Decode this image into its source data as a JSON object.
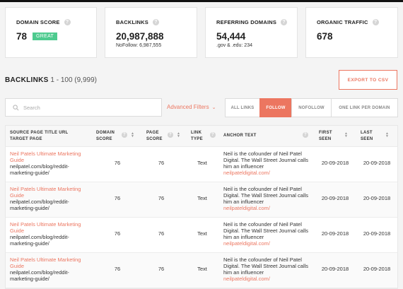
{
  "stats": [
    {
      "label": "DOMAIN SCORE",
      "value": "78",
      "badge": "GREAT",
      "sub": ""
    },
    {
      "label": "BACKLINKS",
      "value": "20,987,888",
      "badge": "",
      "sub": "NoFollow: 6,987,555"
    },
    {
      "label": "REFERRING DOMAINS",
      "value": "54,444",
      "badge": "",
      "sub": ".gov & .edu: 234"
    },
    {
      "label": "ORGANIC TRAFFIC",
      "value": "678",
      "badge": "",
      "sub": ""
    }
  ],
  "section": {
    "title": "BACKLINKS",
    "range": " 1 - 100 (9,999)"
  },
  "export_label": "EXPORT TO CSV",
  "search": {
    "placeholder": "Search"
  },
  "advanced_filters": "Advanced Filters",
  "filter_tabs": [
    "ALL LINKS",
    "FOLLOW",
    "NOFOLLOW",
    "ONE LINK PER DOMAIN"
  ],
  "active_tab": "FOLLOW",
  "columns": {
    "source": [
      "SOURCE PAGE TITLE URL",
      "TARGET PAGE"
    ],
    "domain_score": [
      "DOMAIN",
      "SCORE"
    ],
    "page_score": [
      "PAGE",
      "SCORE"
    ],
    "link_type": [
      "LINK",
      "TYPE"
    ],
    "anchor": [
      "ANCHOR TEXT"
    ],
    "first_seen": [
      "FIRST",
      "SEEN"
    ],
    "last_seen": [
      "LAST",
      "SEEN"
    ]
  },
  "rows": [
    {
      "title": "Neil Patels Ultimate Marketing Guide",
      "url": "neilpatel.com/blog/reddit-marketing-guide/",
      "domain_score": "76",
      "page_score": "76",
      "type": "Text",
      "anchor": "Neil is the cofounder of Neil Patel Digital. The Wall Street Journal calls him an influencer",
      "anchor_link": "neilpateldigital.com/",
      "first_seen": "20-09-2018",
      "last_seen": "20-09-2018"
    },
    {
      "title": "Neil Patels Ultimate Marketing Guide",
      "url": "neilpatel.com/blog/reddit-marketing-guide/",
      "domain_score": "76",
      "page_score": "76",
      "type": "Text",
      "anchor": "Neil is the cofounder of Neil Patel Digital. The Wall Street Journal calls him an influencer",
      "anchor_link": "neilpateldigital.com/",
      "first_seen": "20-09-2018",
      "last_seen": "20-09-2018"
    },
    {
      "title": "Neil Patels Ultimate Marketing Guide",
      "url": "neilpatel.com/blog/reddit-marketing-guide/",
      "domain_score": "76",
      "page_score": "76",
      "type": "Text",
      "anchor": "Neil is the cofounder of Neil Patel Digital. The Wall Street Journal calls him an influencer",
      "anchor_link": "neilpateldigital.com/",
      "first_seen": "20-09-2018",
      "last_seen": "20-09-2018"
    },
    {
      "title": "Neil Patels Ultimate Marketing Guide",
      "url": "neilpatel.com/blog/reddit-marketing-guide/",
      "domain_score": "76",
      "page_score": "76",
      "type": "Text",
      "anchor": "Neil is the cofounder of Neil Patel Digital. The Wall Street Journal calls him an influencer",
      "anchor_link": "neilpateldigital.com/",
      "first_seen": "20-09-2018",
      "last_seen": "20-09-2018"
    }
  ],
  "colors": {
    "accent": "#ec7660",
    "badge_green": "#4ecb8f"
  },
  "icons": {
    "help": "question-circle-icon",
    "search": "search-icon",
    "sort": "sort-arrows-icon",
    "chevron": "chevron-down-icon"
  }
}
